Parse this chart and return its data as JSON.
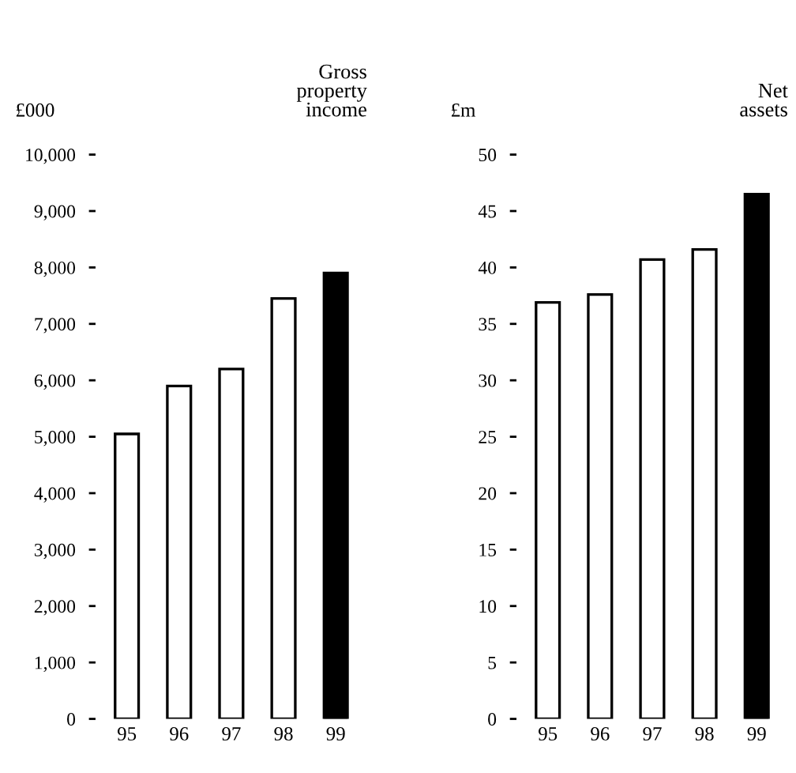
{
  "chart_data": [
    {
      "type": "bar",
      "title": "Gross\nproperty\nincome",
      "ylabel": "£000",
      "categories": [
        "95",
        "96",
        "97",
        "98",
        "99"
      ],
      "values": [
        5050,
        5900,
        6200,
        7450,
        7900
      ],
      "colors": [
        "#ffffff",
        "#ffffff",
        "#ffffff",
        "#ffffff",
        "#000000"
      ],
      "ylim": [
        0,
        10000
      ],
      "yticks": [
        {
          "value": 0,
          "label": "0"
        },
        {
          "value": 1000,
          "label": "1,000"
        },
        {
          "value": 2000,
          "label": "2,000"
        },
        {
          "value": 3000,
          "label": "3,000"
        },
        {
          "value": 4000,
          "label": "4,000"
        },
        {
          "value": 5000,
          "label": "5,000"
        },
        {
          "value": 6000,
          "label": "6,000"
        },
        {
          "value": 7000,
          "label": "7,000"
        },
        {
          "value": 8000,
          "label": "8,000"
        },
        {
          "value": 9000,
          "label": "9,000"
        },
        {
          "value": 10000,
          "label": "10,000"
        }
      ],
      "grid": false,
      "legend": false
    },
    {
      "type": "bar",
      "title": "Net\nassets",
      "ylabel": "£m",
      "categories": [
        "95",
        "96",
        "97",
        "98",
        "99"
      ],
      "values": [
        36.9,
        37.6,
        40.7,
        41.6,
        46.5
      ],
      "colors": [
        "#ffffff",
        "#ffffff",
        "#ffffff",
        "#ffffff",
        "#000000"
      ],
      "ylim": [
        0,
        50
      ],
      "yticks": [
        0,
        5,
        10,
        15,
        20,
        25,
        30,
        35,
        40,
        45,
        50
      ],
      "grid": false,
      "legend": false
    }
  ]
}
